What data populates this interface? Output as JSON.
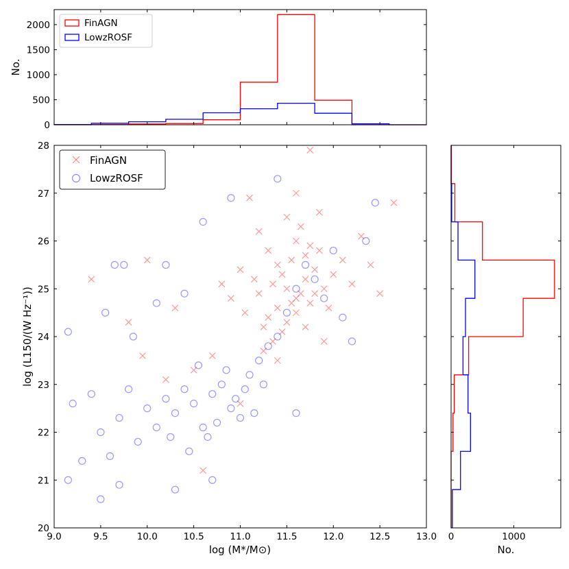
{
  "chart_data": [
    {
      "id": "top-histogram",
      "type": "histogram",
      "title": "",
      "xlabel": "",
      "ylabel": "No.",
      "xlim": [
        9.0,
        13.0
      ],
      "ylim": [
        0,
        2300
      ],
      "yticks": [
        0,
        500,
        1000,
        1500,
        2000
      ],
      "legend_position": "top-left",
      "bin_edges": [
        9.0,
        9.4,
        9.8,
        10.2,
        10.6,
        11.0,
        11.4,
        11.8,
        12.2,
        12.6,
        13.0
      ],
      "series": [
        {
          "name": "FinAGN",
          "color": "#ff0000",
          "counts": [
            0,
            5,
            15,
            25,
            100,
            850,
            2200,
            490,
            0,
            0
          ]
        },
        {
          "name": "LowzROSF",
          "color": "#0000ff",
          "counts": [
            5,
            30,
            60,
            110,
            240,
            320,
            430,
            230,
            20,
            0
          ]
        }
      ]
    },
    {
      "id": "scatter",
      "type": "scatter",
      "title": "",
      "xlabel": "log (M*/M⊙)",
      "ylabel": "log (L150/(W Hz⁻¹))",
      "xlim": [
        9.0,
        13.0
      ],
      "ylim": [
        20,
        28
      ],
      "xticks": [
        9.0,
        9.5,
        10.0,
        10.5,
        11.0,
        11.5,
        12.0,
        12.5,
        13.0
      ],
      "xtick_labels": [
        "9.0",
        "9.5",
        "10.0",
        "10.5",
        "11.0",
        "11.5",
        "12.0",
        "12.5",
        "13.0"
      ],
      "yticks": [
        20,
        21,
        22,
        23,
        24,
        25,
        26,
        27,
        28
      ],
      "legend_position": "top-left",
      "series": [
        {
          "name": "FinAGN",
          "marker": "x",
          "color": "#ff0000",
          "points": [
            [
              11.6,
              24.8
            ],
            [
              11.5,
              25.0
            ],
            [
              11.7,
              25.2
            ],
            [
              11.4,
              24.6
            ],
            [
              11.8,
              25.4
            ],
            [
              11.3,
              24.4
            ],
            [
              11.55,
              25.6
            ],
            [
              11.65,
              24.9
            ],
            [
              11.45,
              25.3
            ],
            [
              11.75,
              24.7
            ],
            [
              11.35,
              25.1
            ],
            [
              11.85,
              25.8
            ],
            [
              11.25,
              24.2
            ],
            [
              11.9,
              25.0
            ],
            [
              11.6,
              26.0
            ],
            [
              11.5,
              24.3
            ],
            [
              11.7,
              25.7
            ],
            [
              11.4,
              25.5
            ],
            [
              11.2,
              24.9
            ],
            [
              12.0,
              25.3
            ],
            [
              11.6,
              24.5
            ],
            [
              11.3,
              25.8
            ],
            [
              11.8,
              24.9
            ],
            [
              11.45,
              24.1
            ],
            [
              11.65,
              26.3
            ],
            [
              11.55,
              24.7
            ],
            [
              11.75,
              25.9
            ],
            [
              11.95,
              24.6
            ],
            [
              11.15,
              25.2
            ],
            [
              11.35,
              23.9
            ],
            [
              12.1,
              25.6
            ],
            [
              11.05,
              24.5
            ],
            [
              11.5,
              26.5
            ],
            [
              11.7,
              24.2
            ],
            [
              12.2,
              25.1
            ],
            [
              11.0,
              25.4
            ],
            [
              11.85,
              26.6
            ],
            [
              11.25,
              23.7
            ],
            [
              12.3,
              26.1
            ],
            [
              10.9,
              24.8
            ],
            [
              11.6,
              27.0
            ],
            [
              11.4,
              23.5
            ],
            [
              12.4,
              25.5
            ],
            [
              10.8,
              25.1
            ],
            [
              11.75,
              27.9
            ],
            [
              11.2,
              26.2
            ],
            [
              11.9,
              23.9
            ],
            [
              10.6,
              21.2
            ],
            [
              9.4,
              25.2
            ],
            [
              10.0,
              25.6
            ],
            [
              9.8,
              24.3
            ],
            [
              10.3,
              24.6
            ],
            [
              12.65,
              26.8
            ],
            [
              12.5,
              24.9
            ],
            [
              11.1,
              26.9
            ],
            [
              10.7,
              23.6
            ],
            [
              10.5,
              23.3
            ],
            [
              10.2,
              23.1
            ],
            [
              9.95,
              23.6
            ],
            [
              11.0,
              22.6
            ]
          ]
        },
        {
          "name": "LowzROSF",
          "marker": "o",
          "color": "#0000ff",
          "points": [
            [
              10.9,
              22.5
            ],
            [
              10.7,
              22.8
            ],
            [
              11.0,
              22.3
            ],
            [
              10.5,
              22.6
            ],
            [
              10.8,
              23.0
            ],
            [
              10.6,
              22.1
            ],
            [
              11.1,
              23.2
            ],
            [
              10.4,
              22.9
            ],
            [
              10.95,
              22.7
            ],
            [
              10.75,
              22.2
            ],
            [
              11.2,
              23.5
            ],
            [
              10.3,
              22.4
            ],
            [
              10.85,
              23.3
            ],
            [
              10.65,
              21.9
            ],
            [
              11.05,
              22.9
            ],
            [
              10.2,
              22.7
            ],
            [
              11.3,
              23.8
            ],
            [
              10.1,
              22.1
            ],
            [
              10.55,
              23.4
            ],
            [
              11.15,
              22.4
            ],
            [
              10.0,
              22.5
            ],
            [
              11.4,
              24.0
            ],
            [
              9.9,
              21.8
            ],
            [
              10.45,
              21.6
            ],
            [
              11.25,
              23.0
            ],
            [
              9.8,
              22.9
            ],
            [
              11.5,
              24.5
            ],
            [
              9.7,
              22.3
            ],
            [
              10.25,
              21.9
            ],
            [
              11.6,
              25.0
            ],
            [
              9.6,
              21.5
            ],
            [
              11.7,
              25.5
            ],
            [
              9.5,
              22.0
            ],
            [
              11.8,
              25.2
            ],
            [
              9.4,
              22.8
            ],
            [
              11.9,
              24.8
            ],
            [
              9.3,
              21.4
            ],
            [
              12.0,
              25.8
            ],
            [
              9.2,
              22.6
            ],
            [
              12.1,
              24.4
            ],
            [
              9.15,
              21.0
            ],
            [
              9.5,
              20.6
            ],
            [
              9.7,
              20.9
            ],
            [
              10.3,
              20.8
            ],
            [
              10.7,
              21.0
            ],
            [
              9.15,
              24.1
            ],
            [
              9.55,
              24.5
            ],
            [
              9.75,
              25.5
            ],
            [
              9.65,
              25.5
            ],
            [
              10.2,
              25.5
            ],
            [
              10.6,
              26.4
            ],
            [
              10.9,
              26.9
            ],
            [
              11.4,
              27.3
            ],
            [
              12.45,
              26.8
            ],
            [
              12.35,
              26.0
            ],
            [
              9.85,
              24.0
            ],
            [
              10.1,
              24.7
            ],
            [
              10.4,
              24.9
            ],
            [
              12.2,
              23.9
            ],
            [
              11.6,
              22.4
            ]
          ]
        }
      ]
    },
    {
      "id": "right-histogram",
      "type": "histogram",
      "orientation": "horizontal",
      "title": "",
      "xlabel": "No.",
      "ylabel": "",
      "xlim": [
        0,
        1750
      ],
      "ylim": [
        20,
        28
      ],
      "xticks": [
        0,
        1000
      ],
      "bin_edges": [
        20.0,
        20.8,
        21.6,
        22.4,
        23.2,
        24.0,
        24.8,
        25.6,
        26.4,
        27.2,
        28.0
      ],
      "series": [
        {
          "name": "FinAGN",
          "color": "#ff0000",
          "counts": [
            0,
            0,
            30,
            50,
            280,
            1150,
            1650,
            500,
            60,
            5
          ]
        },
        {
          "name": "LowzROSF",
          "color": "#0000ff",
          "counts": [
            20,
            150,
            310,
            270,
            190,
            230,
            380,
            110,
            10,
            0
          ]
        }
      ]
    }
  ]
}
